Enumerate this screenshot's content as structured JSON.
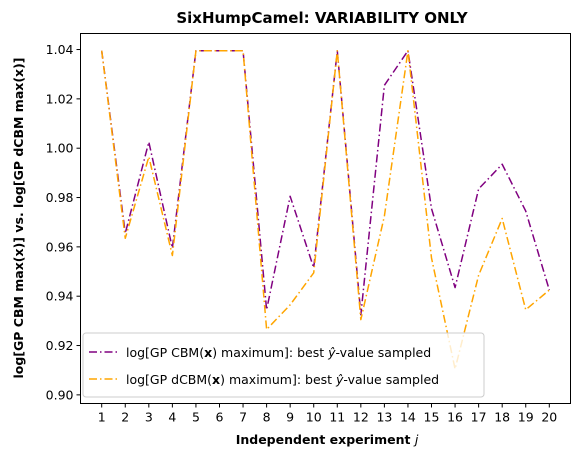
{
  "chart_data": {
    "type": "line",
    "title": "SixHumpCamel: VARIABILITY ONLY",
    "xlabel_main": "Independent experiment ",
    "xlabel_var": "j",
    "ylabel": "log[GP CBM max(x)] vs. log[GP dCBM max(x)]",
    "x": [
      1,
      2,
      3,
      4,
      5,
      6,
      7,
      8,
      9,
      10,
      11,
      12,
      13,
      14,
      15,
      16,
      17,
      18,
      19,
      20
    ],
    "xticks": [
      "1",
      "2",
      "3",
      "4",
      "5",
      "6",
      "7",
      "8",
      "9",
      "10",
      "11",
      "12",
      "13",
      "14",
      "15",
      "16",
      "17",
      "18",
      "19",
      "20"
    ],
    "yticks": [
      "0.90",
      "0.92",
      "0.94",
      "0.96",
      "0.98",
      "1.00",
      "1.02",
      "1.04"
    ],
    "ytick_values": [
      0.9,
      0.92,
      0.94,
      0.96,
      0.98,
      1.0,
      1.02,
      1.04
    ],
    "xlim": [
      0.1,
      20.9
    ],
    "ylim": [
      0.8965,
      1.0465
    ],
    "legend_position": "lower-left",
    "series": [
      {
        "legend_prefix": "log[GP CBM(",
        "legend_bold": "x",
        "legend_mid": ") maximum]: best ",
        "legend_var": "ŷ",
        "legend_suffix": "-value sampled",
        "color": "#800080",
        "dash": "dashdot",
        "values": [
          1.0395,
          0.9655,
          1.0025,
          0.9595,
          1.0395,
          1.0395,
          1.0395,
          0.9345,
          0.9805,
          0.9515,
          1.0395,
          0.9325,
          1.0255,
          1.0395,
          0.9755,
          0.9435,
          0.9835,
          0.9935,
          0.9745,
          0.9425
        ]
      },
      {
        "legend_prefix": "log[GP dCBM(",
        "legend_bold": "x",
        "legend_mid": ") maximum]: best ",
        "legend_var": "ŷ",
        "legend_suffix": "-value sampled",
        "color": "#FFA500",
        "dash": "dashdot",
        "values": [
          1.0395,
          0.9635,
          0.9965,
          0.9565,
          1.0395,
          1.0395,
          1.0395,
          0.9265,
          0.9365,
          0.9495,
          1.0395,
          0.9305,
          0.9725,
          1.0395,
          0.9555,
          0.9105,
          0.9485,
          0.9715,
          0.9345,
          0.9425
        ]
      }
    ]
  }
}
